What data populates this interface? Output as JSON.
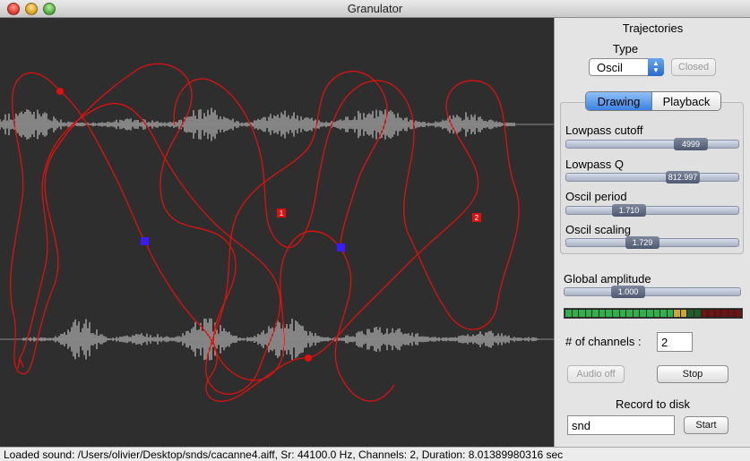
{
  "window": {
    "title": "Granulator"
  },
  "panel": {
    "trajectories_label": "Trajectories",
    "type_label": "Type",
    "type_select": "Oscil",
    "closed_button": "Closed",
    "tabs": [
      {
        "label": "Drawing",
        "selected": true
      },
      {
        "label": "Playback",
        "selected": false
      }
    ],
    "sliders": [
      {
        "label": "Lowpass cutoff",
        "value": "4999",
        "fraction": 0.78
      },
      {
        "label": "Lowpass Q",
        "value": "812.997",
        "fraction": 0.72
      },
      {
        "label": "Oscil period",
        "value": "1.710",
        "fraction": 0.33
      },
      {
        "label": "Oscil scaling",
        "value": "1.729",
        "fraction": 0.43
      }
    ],
    "global_amplitude": {
      "label": "Global amplitude",
      "value": "1.000",
      "fraction": 0.33
    },
    "meter": {
      "lit_fraction": 0.69
    },
    "channels_label": "# of channels :",
    "channels_value": "2",
    "audio_button": "Audio off",
    "stop_button": "Stop",
    "record_label": "Record to disk",
    "record_filename": "snd",
    "start_button": "Start"
  },
  "canvas": {
    "markers": [
      {
        "label": "1"
      },
      {
        "label": "2"
      }
    ]
  },
  "status": {
    "text": "Loaded sound: /Users/olivier/Desktop/snds/cacanne4.aiff,     Sr: 44100.0 Hz,     Channels: 2,     Duration: 8.01389980316 sec"
  },
  "colors": {
    "trajectory": "#e01010",
    "point_blue": "#3a1aff",
    "canvas_bg": "#2e2e2e"
  }
}
